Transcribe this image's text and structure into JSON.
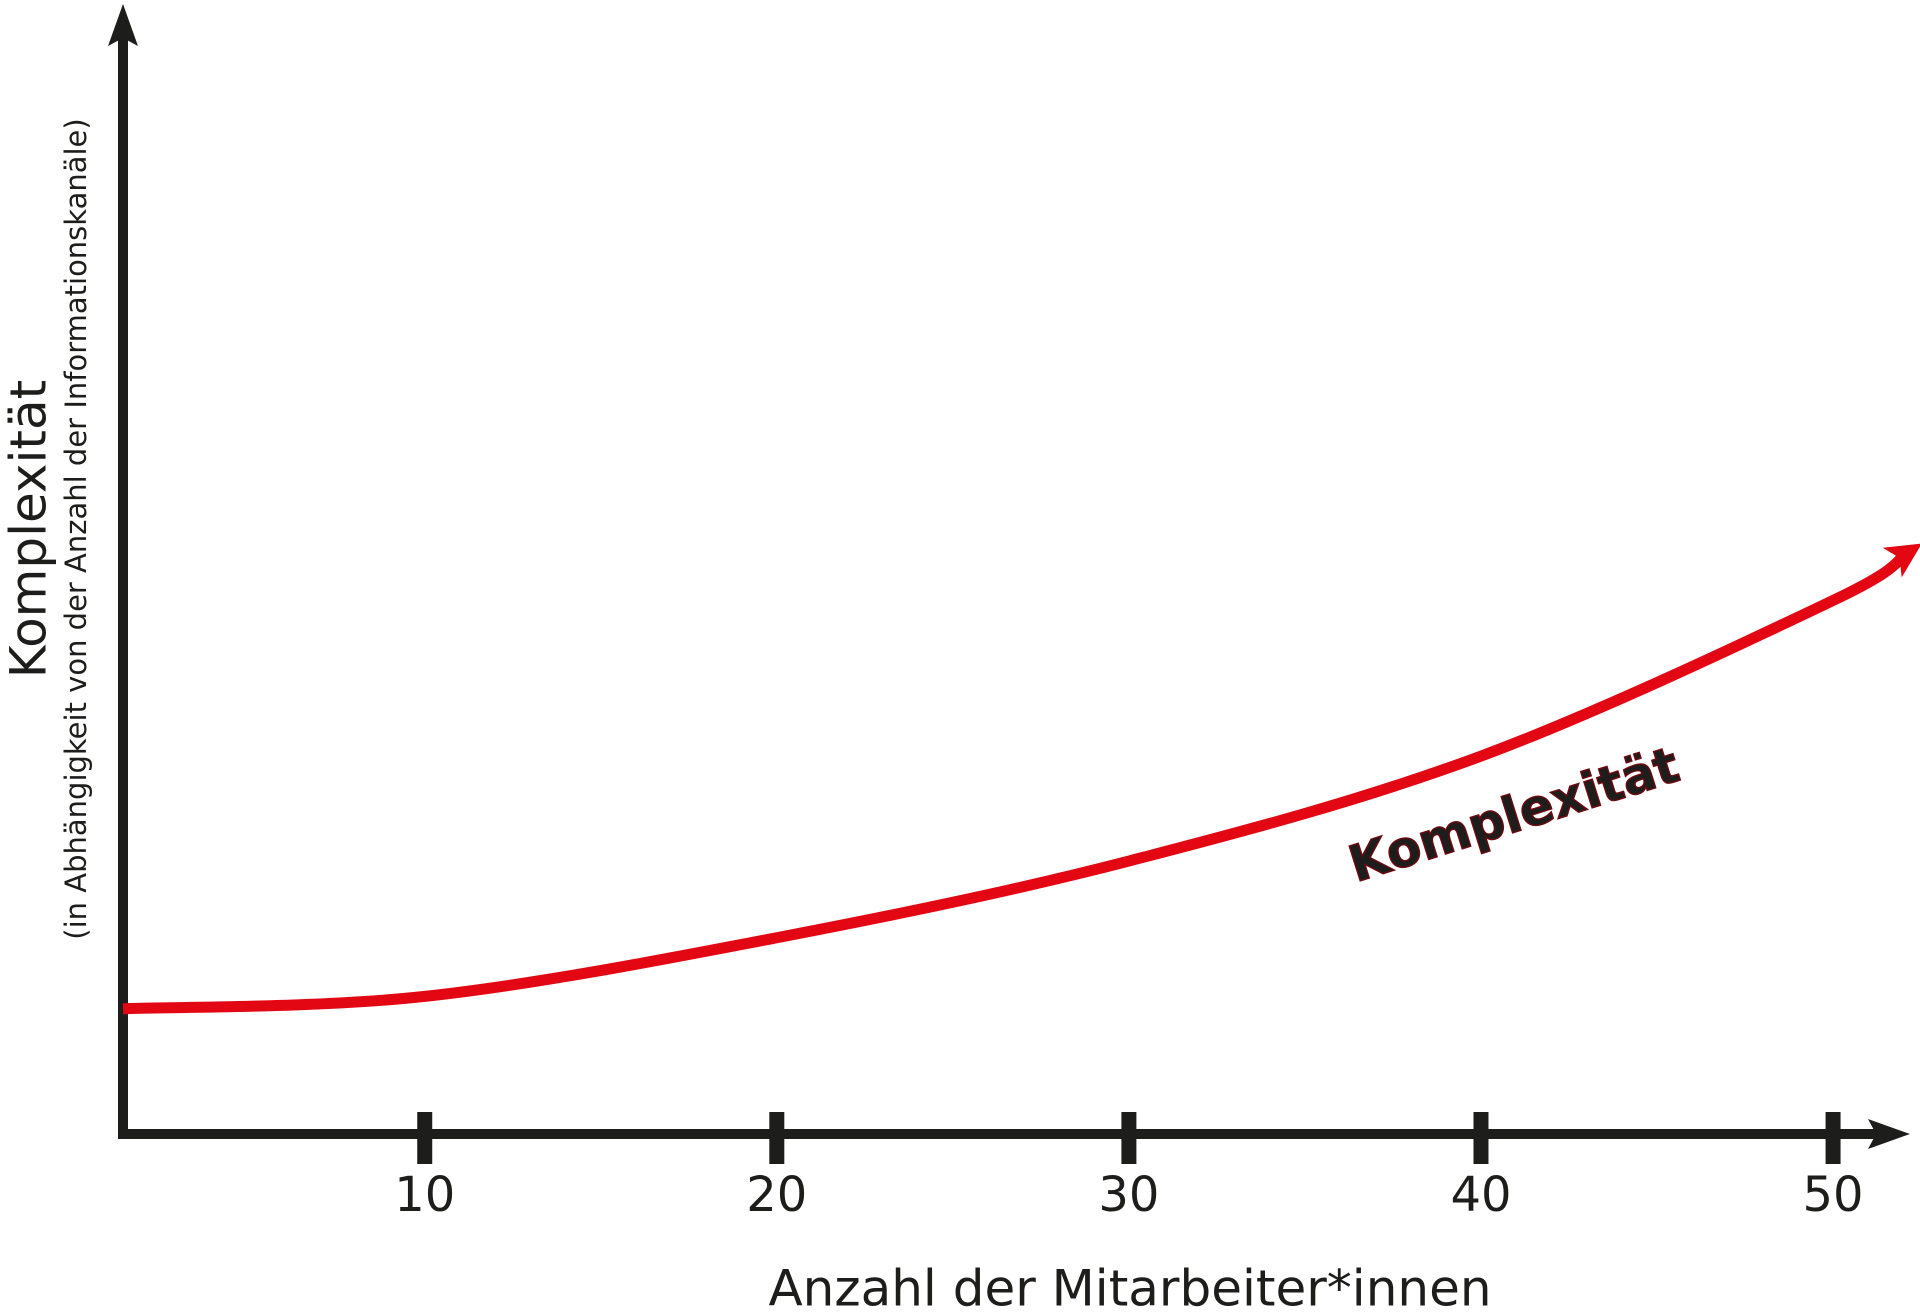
{
  "chart_data": {
    "type": "line",
    "xlabel": "Anzahl der Mitarbeiter*innen",
    "ylabel": "Komplexität",
    "ylabel_note": "(in Abhängigkeit von der Anzahl der Informationskanäle)",
    "annotations": [
      {
        "text": "Komplexität"
      }
    ],
    "x": [
      1.43,
      10,
      20,
      30,
      40,
      50,
      52.1
    ],
    "values": [
      11.1,
      12.2,
      17.4,
      24.2,
      33.5,
      47.3,
      51.5
    ],
    "color": "#e30613",
    "xlim": [
      1.43,
      52.1
    ],
    "ylim": [
      0,
      100
    ],
    "xticks": [
      10,
      20,
      30,
      40,
      50
    ]
  }
}
